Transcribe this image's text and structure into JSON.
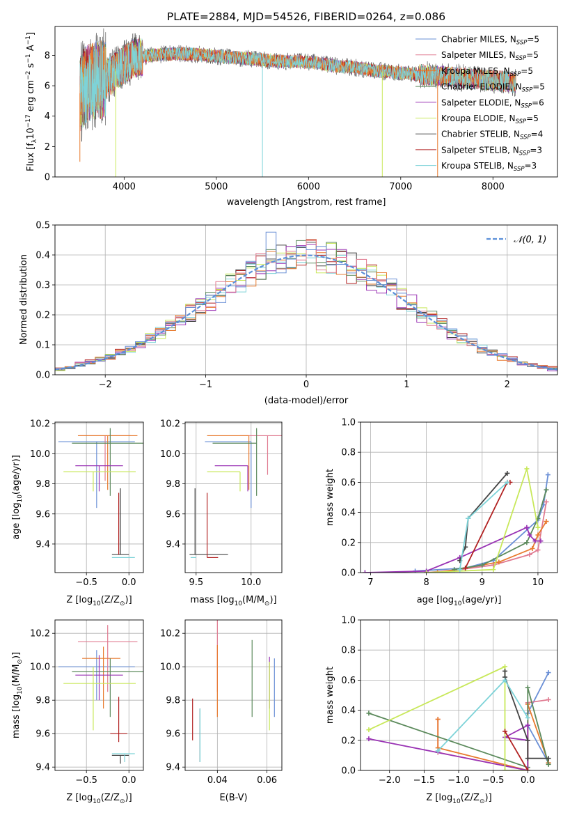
{
  "figure": {
    "title": "PLATE=2884, MJD=54526, FIBERID=0264, z=0.086"
  },
  "colors": [
    "#6a8fd6",
    "#e07b91",
    "#e87a2e",
    "#5c8a5c",
    "#9932b4",
    "#c8e85a",
    "#444444",
    "#b22222",
    "#7dd3d8"
  ],
  "chart_data": [
    {
      "id": "spectrum",
      "type": "line",
      "title": "PLATE=2884, MJD=54526, FIBERID=0264, z=0.086",
      "xlabel": "wavelength [Angstrom, rest frame]",
      "ylabel_main": "Flux [f",
      "ylabel_sub": "λ",
      "ylabel_rest": "10",
      "ylabel_exp": "−17",
      "ylabel_unit": " erg cm",
      "ylabel_unit_exp": "−2",
      "ylabel_s": " s",
      "ylabel_s_exp": "−1",
      "ylabel_A": " A",
      "ylabel_A_exp": "−1",
      "ylabel_end": "]",
      "xlim": [
        3250,
        8700
      ],
      "ylim": [
        0,
        9.9
      ],
      "xticks": [
        4000,
        5000,
        6000,
        7000,
        8000
      ],
      "yticks": [
        0,
        2,
        4,
        6,
        8
      ],
      "legend_loc": "right",
      "legend": [
        {
          "name": "Chabrier MILES",
          "n": "5"
        },
        {
          "name": "Salpeter MILES",
          "n": "5"
        },
        {
          "name": "Kroupa MILES",
          "n": "5"
        },
        {
          "name": "Chabrier ELODIE",
          "n": "5"
        },
        {
          "name": "Salpeter ELODIE",
          "n": "6"
        },
        {
          "name": "Kroupa ELODIE",
          "n": "5"
        },
        {
          "name": "Chabrier STELIB",
          "n": "4"
        },
        {
          "name": "Salpeter STELIB",
          "n": "3"
        },
        {
          "name": "Kroupa STELIB",
          "n": "3"
        }
      ],
      "continuum": [
        [
          3520,
          5.5
        ],
        [
          3600,
          6.2
        ],
        [
          3700,
          6.4
        ],
        [
          3800,
          6.4
        ],
        [
          3900,
          6.9
        ],
        [
          4000,
          7.4
        ],
        [
          4100,
          7.8
        ],
        [
          4300,
          8.0
        ],
        [
          4500,
          8.1
        ],
        [
          4700,
          8.1
        ],
        [
          4900,
          8.0
        ],
        [
          5100,
          7.9
        ],
        [
          5300,
          7.8
        ],
        [
          5500,
          7.7
        ],
        [
          5700,
          7.6
        ],
        [
          5900,
          7.6
        ],
        [
          6100,
          7.5
        ],
        [
          6300,
          7.3
        ],
        [
          6500,
          7.2
        ],
        [
          6700,
          7.0
        ],
        [
          6900,
          6.9
        ],
        [
          7100,
          6.8
        ],
        [
          7300,
          6.7
        ],
        [
          7500,
          6.6
        ],
        [
          7700,
          6.5
        ],
        [
          7900,
          6.4
        ],
        [
          8100,
          6.3
        ],
        [
          8250,
          6.2
        ]
      ]
    },
    {
      "id": "residuals",
      "type": "line",
      "xlabel": "(data-model)/error",
      "ylabel": "Normed distribution",
      "xlim": [
        -2.5,
        2.5
      ],
      "ylim": [
        0,
        0.5
      ],
      "xticks": [
        -2,
        -1,
        0,
        1,
        2
      ],
      "yticks": [
        0,
        0.1,
        0.2,
        0.3,
        0.4,
        0.5
      ],
      "legend_label": "𝒩(0, 1)",
      "legend_loc": "upper right"
    },
    {
      "id": "age-vs-Z",
      "type": "scatter",
      "xlabel": "Z [log",
      "xlabel_sub": "10",
      "xlabel_rest": "(Z/Z",
      "xlabel_sun_sub": "⊙",
      "xlabel_end": ")]",
      "ylabel": "age  [log",
      "ylabel_sub": "10",
      "ylabel_rest": "(age/yr)]",
      "xlim": [
        -0.87,
        0.17
      ],
      "ylim": [
        9.21,
        10.21
      ],
      "xticks": [
        -0.5,
        0.0
      ],
      "yticks": [
        9.4,
        9.6,
        9.8,
        10.0,
        10.2
      ],
      "points": [
        {
          "x": -0.38,
          "xerr": [
            0.45,
            0.45
          ],
          "y": 10.08,
          "yerr": [
            0.44,
            0.0
          ]
        },
        {
          "x": -0.28,
          "xerr": [
            0.3,
            0.3
          ],
          "y": 10.12,
          "yerr": [
            0.3,
            0.0
          ]
        },
        {
          "x": -0.25,
          "xerr": [
            0.35,
            0.35
          ],
          "y": 10.12,
          "yerr": [
            0.36,
            0.0
          ]
        },
        {
          "x": -0.22,
          "xerr": [
            0.45,
            0.4
          ],
          "y": 10.07,
          "yerr": [
            0.35,
            0.1
          ]
        },
        {
          "x": -0.35,
          "xerr": [
            0.28,
            0.28
          ],
          "y": 9.92,
          "yerr": [
            0.17,
            0.0
          ]
        },
        {
          "x": -0.42,
          "xerr": [
            0.35,
            0.5
          ],
          "y": 9.88,
          "yerr": [
            0.13,
            0.0
          ]
        },
        {
          "x": -0.1,
          "xerr": [
            0.1,
            0.1
          ],
          "y": 9.33,
          "yerr": [
            0.0,
            0.44
          ]
        },
        {
          "x": -0.12,
          "xerr": [
            0.0,
            0.0
          ],
          "y": 9.33,
          "yerr": [
            0.0,
            0.41
          ]
        },
        {
          "x": -0.05,
          "xerr": [
            0.15,
            0.12
          ],
          "y": 9.31,
          "yerr": [
            0.0,
            0.0
          ]
        }
      ]
    },
    {
      "id": "age-vs-mass",
      "type": "scatter",
      "xlabel": "mass [log",
      "xlabel_sub": "10",
      "xlabel_rest": "(M/M",
      "xlabel_sun_sub": "⊙",
      "xlabel_end": ")]",
      "xlim": [
        9.4,
        10.28
      ],
      "ylim": [
        9.21,
        10.21
      ],
      "xticks": [
        9.5,
        10.0
      ],
      "yticks": [
        9.4,
        9.6,
        9.8,
        10.0,
        10.2
      ],
      "points": [
        {
          "x": 10.0,
          "xerr": [
            0.42,
            0.0
          ],
          "y": 10.08,
          "yerr": [
            0.44,
            0.0
          ]
        },
        {
          "x": 10.15,
          "xerr": [
            0.25,
            0.15
          ],
          "y": 10.12,
          "yerr": [
            0.26,
            0.0
          ]
        },
        {
          "x": 9.98,
          "xerr": [
            0.38,
            0.0
          ],
          "y": 10.12,
          "yerr": [
            0.36,
            0.0
          ]
        },
        {
          "x": 10.05,
          "xerr": [
            0.4,
            0.0
          ],
          "y": 10.07,
          "yerr": [
            0.35,
            0.1
          ]
        },
        {
          "x": 9.97,
          "xerr": [
            0.3,
            0.0
          ],
          "y": 9.92,
          "yerr": [
            0.17,
            0.0
          ]
        },
        {
          "x": 9.9,
          "xerr": [
            0.3,
            0.0
          ],
          "y": 9.88,
          "yerr": [
            0.13,
            0.0
          ]
        },
        {
          "x": 9.49,
          "xerr": [
            0.05,
            0.3
          ],
          "y": 9.33,
          "yerr": [
            0.0,
            0.44
          ]
        },
        {
          "x": 9.6,
          "xerr": [
            0.0,
            0.1
          ],
          "y": 9.31,
          "yerr": [
            0.0,
            0.43
          ]
        },
        {
          "x": 9.5,
          "xerr": [
            0.05,
            0.0
          ],
          "y": 9.31,
          "yerr": [
            0.0,
            0.0
          ]
        }
      ]
    },
    {
      "id": "weight-vs-age",
      "type": "line",
      "xlabel": "age  [log",
      "xlabel_sub": "10",
      "xlabel_rest": "(age/yr)]",
      "ylabel": "mass weight",
      "xlim": [
        6.82,
        10.35
      ],
      "ylim": [
        0,
        1.0
      ],
      "xticks": [
        7,
        8,
        9,
        10
      ],
      "yticks": [
        0,
        0.2,
        0.4,
        0.6,
        0.8,
        1.0
      ],
      "series": [
        {
          "x": [
            7.8,
            8.7,
            9.2,
            10.0,
            10.1,
            10.18
          ],
          "y": [
            0.01,
            0.03,
            0.08,
            0.35,
            0.45,
            0.65
          ]
        },
        {
          "x": [
            8.0,
            8.6,
            9.2,
            9.85,
            10.0,
            10.15
          ],
          "y": [
            0.0,
            0.02,
            0.05,
            0.12,
            0.15,
            0.47
          ]
        },
        {
          "x": [
            8.2,
            8.7,
            9.3,
            9.9,
            10.0,
            10.15
          ],
          "y": [
            0.0,
            0.03,
            0.07,
            0.16,
            0.25,
            0.34
          ]
        },
        {
          "x": [
            8.5,
            9.0,
            9.8,
            10.0,
            10.15
          ],
          "y": [
            0.02,
            0.05,
            0.2,
            0.36,
            0.55
          ]
        },
        {
          "x": [
            6.9,
            8.0,
            8.6,
            9.8,
            9.85,
            9.95,
            10.05
          ],
          "y": [
            0.0,
            0.01,
            0.1,
            0.3,
            0.25,
            0.21,
            0.21
          ]
        },
        {
          "x": [
            8.0,
            9.2,
            9.8,
            10.0
          ],
          "y": [
            0.0,
            0.02,
            0.69,
            0.3
          ]
        },
        {
          "x": [
            8.6,
            8.7,
            8.75,
            9.45
          ],
          "y": [
            0.08,
            0.17,
            0.36,
            0.66
          ]
        },
        {
          "x": [
            8.7,
            9.45,
            9.5
          ],
          "y": [
            0.03,
            0.6,
            0.6
          ]
        },
        {
          "x": [
            8.6,
            8.75,
            9.45
          ],
          "y": [
            0.02,
            0.36,
            0.6
          ]
        }
      ]
    },
    {
      "id": "mass-vs-Z",
      "type": "scatter",
      "xlabel": "Z [log",
      "xlabel_sub": "10",
      "xlabel_rest": "(Z/Z",
      "xlabel_sun_sub": "⊙",
      "xlabel_end": ")]",
      "ylabel": "mass [log",
      "ylabel_sub": "10",
      "ylabel_rest": "(M/M",
      "ylabel_sun_sub": "⊙",
      "ylabel_end": ")]",
      "xlim": [
        -0.87,
        0.17
      ],
      "ylim": [
        9.38,
        10.28
      ],
      "xticks": [
        -0.5,
        0.0
      ],
      "yticks": [
        9.4,
        9.6,
        9.8,
        10.0,
        10.2
      ],
      "points": [
        {
          "x": -0.38,
          "xerr": [
            0.45,
            0.45
          ],
          "y": 10.0,
          "yerr": [
            0.2,
            0.1
          ]
        },
        {
          "x": -0.25,
          "xerr": [
            0.35,
            0.35
          ],
          "y": 10.15,
          "yerr": [
            0.3,
            0.1
          ]
        },
        {
          "x": -0.3,
          "xerr": [
            0.25,
            0.2
          ],
          "y": 10.05,
          "yerr": [
            0.3,
            0.07
          ]
        },
        {
          "x": -0.22,
          "xerr": [
            0.45,
            0.4
          ],
          "y": 9.97,
          "yerr": [
            0.27,
            0.08
          ]
        },
        {
          "x": -0.35,
          "xerr": [
            0.28,
            0.28
          ],
          "y": 9.95,
          "yerr": [
            0.15,
            0.12
          ]
        },
        {
          "x": -0.42,
          "xerr": [
            0.35,
            0.5
          ],
          "y": 9.9,
          "yerr": [
            0.28,
            0.1
          ]
        },
        {
          "x": -0.1,
          "xerr": [
            0.1,
            0.1
          ],
          "y": 9.47,
          "yerr": [
            0.05,
            0.0
          ]
        },
        {
          "x": -0.12,
          "xerr": [
            0.1,
            0.1
          ],
          "y": 9.6,
          "yerr": [
            0.05,
            0.22
          ]
        },
        {
          "x": -0.05,
          "xerr": [
            0.15,
            0.12
          ],
          "y": 9.48,
          "yerr": [
            0.05,
            0.0
          ]
        }
      ]
    },
    {
      "id": "mass-vs-ebv",
      "type": "scatter",
      "xlabel": "E(B-V)",
      "xlim": [
        0.027,
        0.066
      ],
      "ylim": [
        9.38,
        10.28
      ],
      "xticks": [
        0.04,
        0.06
      ],
      "yticks": [
        9.4,
        9.6,
        9.8,
        10.0,
        10.2
      ],
      "points": [
        {
          "x": 0.063,
          "y": 10.0,
          "yerr": [
            0.3,
            0.05
          ]
        },
        {
          "x": 0.04,
          "y": 10.15,
          "yerr": [
            0.3,
            0.13
          ]
        },
        {
          "x": 0.04,
          "y": 10.05,
          "yerr": [
            0.35,
            0.08
          ]
        },
        {
          "x": 0.054,
          "y": 9.97,
          "yerr": [
            0.27,
            0.19
          ]
        },
        {
          "x": 0.061,
          "y": 10.0,
          "yerr": [
            0.25,
            0.06
          ]
        },
        {
          "x": 0.061,
          "y": 9.9,
          "yerr": [
            0.28,
            0.13
          ]
        },
        {
          "x": 0.033,
          "y": 9.6,
          "yerr": [
            0.17,
            0.15
          ]
        },
        {
          "x": 0.03,
          "y": 9.6,
          "yerr": [
            0.04,
            0.21
          ]
        },
        {
          "x": 0.033,
          "y": 9.48,
          "yerr": [
            0.05,
            0.27
          ]
        }
      ]
    },
    {
      "id": "weight-vs-Z",
      "type": "line",
      "xlabel": "Z [log",
      "xlabel_sub": "10",
      "xlabel_rest": "(Z/Z",
      "xlabel_sun_sub": "⊙",
      "xlabel_end": ")]",
      "ylabel": "mass weight",
      "xlim": [
        -2.42,
        0.43
      ],
      "ylim": [
        0,
        1.0
      ],
      "xticks": [
        -2.0,
        -1.5,
        -1.0,
        -0.5,
        0.0
      ],
      "yticks": [
        0,
        0.2,
        0.4,
        0.6,
        0.8,
        1.0
      ],
      "series": [
        {
          "x": [
            0.3,
            0.0,
            0.0,
            0.3
          ],
          "y": [
            0.05,
            0.3,
            0.38,
            0.65
          ]
        },
        {
          "x": [
            -1.3,
            -1.3,
            0.0,
            0.0,
            0.3
          ],
          "y": [
            0.34,
            0.12,
            0.0,
            0.45,
            0.47
          ]
        },
        {
          "x": [
            -1.3,
            -1.3,
            0.0,
            0.0,
            0.3
          ],
          "y": [
            0.34,
            0.15,
            0.0,
            0.44,
            0.05
          ]
        },
        {
          "x": [
            -2.3,
            0.0,
            0.0,
            0.3
          ],
          "y": [
            0.38,
            0.02,
            0.55,
            0.04
          ]
        },
        {
          "x": [
            -2.3,
            0.0,
            0.0,
            -0.33,
            0.0
          ],
          "y": [
            0.21,
            0.0,
            0.3,
            0.22,
            0.2
          ]
        },
        {
          "x": [
            -2.3,
            -0.33,
            -0.33,
            0.0
          ],
          "y": [
            0.27,
            0.69,
            0.0,
            0.0
          ]
        },
        {
          "x": [
            -0.33,
            -0.33,
            0.0,
            0.0,
            0.3
          ],
          "y": [
            0.66,
            0.62,
            0.2,
            0.08,
            0.08
          ]
        },
        {
          "x": [
            -0.33,
            0.0
          ],
          "y": [
            0.26,
            0.0
          ]
        },
        {
          "x": [
            -1.3,
            -0.33,
            0.0
          ],
          "y": [
            0.13,
            0.6,
            0.35
          ]
        }
      ]
    }
  ]
}
